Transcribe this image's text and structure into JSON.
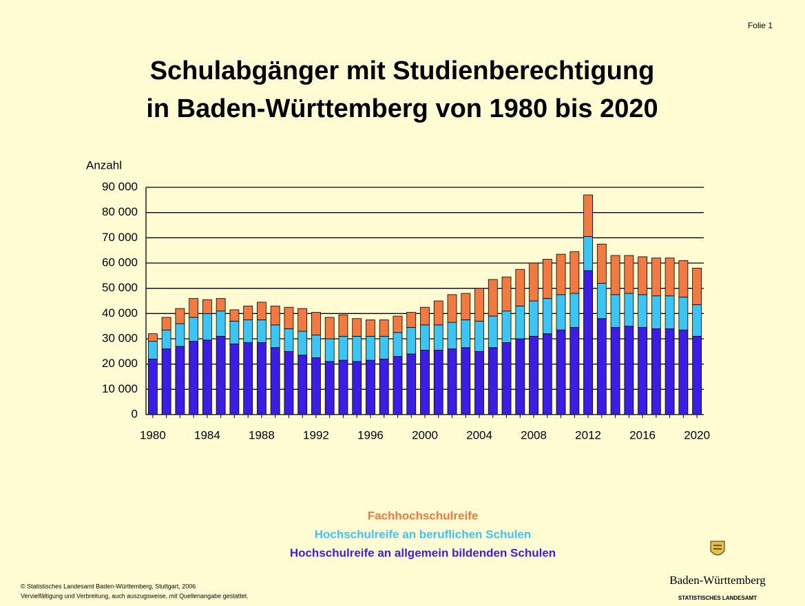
{
  "page": {
    "slide_label": "Folie 1",
    "footer": [
      "© Statistisches Landesamt Baden-Württemberg, Stuttgart, 2006",
      "Vervielfältigung und Verbreitung, auch auszugsweise, mit Quellenangabe gestattet."
    ],
    "logo": {
      "name": "Baden-Württemberg",
      "subtitle": "STATISTISCHES LANDESAMT"
    }
  },
  "chart_data": {
    "type": "stacked_bar",
    "title": [
      "Schulabgänger mit Studienberechtigung",
      "in Baden-Württemberg von 1980 bis 2020"
    ],
    "y_label": "Anzahl",
    "categories": [
      "1980",
      null,
      null,
      null,
      "1984",
      null,
      null,
      null,
      "1988",
      null,
      null,
      null,
      "1992",
      null,
      null,
      null,
      "1996",
      null,
      null,
      null,
      "2000",
      null,
      null,
      null,
      "2004",
      null,
      null,
      null,
      "2008",
      null,
      null,
      null,
      "2012",
      null,
      null,
      null,
      "2016",
      null,
      null,
      null,
      "2020"
    ],
    "series": [
      {
        "name": "Hochschulreife an allgemein bildenden Schulen",
        "color": "#3a1ee6",
        "values": [
          22000,
          26000,
          27000,
          29000,
          29500,
          31000,
          28000,
          28500,
          28500,
          26500,
          25000,
          23500,
          22500,
          21000,
          21500,
          21000,
          21500,
          22000,
          23000,
          24000,
          25500,
          25500,
          26000,
          26500,
          25000,
          26500,
          28500,
          30000,
          31000,
          32000,
          33500,
          34500,
          57000,
          38000,
          34500,
          35000,
          34500,
          34000,
          34000,
          33500,
          31000
        ]
      },
      {
        "name": "Hochschulreife an beruflichen Schulen",
        "color": "#3cc4f4",
        "values": [
          7000,
          7500,
          9000,
          9500,
          10500,
          10000,
          9000,
          9000,
          9000,
          9000,
          9000,
          9500,
          9000,
          9000,
          9500,
          10000,
          9500,
          9000,
          9500,
          10500,
          10000,
          10000,
          10500,
          11000,
          12000,
          12500,
          12500,
          13000,
          14000,
          14000,
          14000,
          13500,
          13500,
          14000,
          13000,
          13000,
          13000,
          13000,
          13000,
          13000,
          12500
        ]
      },
      {
        "name": "Fachhochschulreife",
        "color": "#f07a42",
        "values": [
          3000,
          5000,
          6000,
          7500,
          5500,
          5000,
          4500,
          5500,
          7000,
          7500,
          8500,
          9000,
          9000,
          8500,
          8500,
          7000,
          6500,
          6500,
          6500,
          6000,
          7000,
          9500,
          11000,
          10500,
          13000,
          14500,
          13500,
          14500,
          15000,
          15500,
          16000,
          16500,
          16500,
          15500,
          15500,
          15000,
          15000,
          15000,
          15000,
          14500,
          14500
        ]
      }
    ],
    "ylim": [
      0,
      90000
    ],
    "yticks": [
      0,
      {
        "value": 10000,
        "label": "10 000"
      },
      {
        "value": 20000,
        "label": "20 000"
      },
      {
        "value": 30000,
        "label": "30 000"
      },
      {
        "value": 40000,
        "label": "40 000"
      },
      {
        "value": 50000,
        "label": "50 000"
      },
      {
        "value": 60000,
        "label": "60 000"
      },
      {
        "value": 70000,
        "label": "70 000"
      },
      {
        "value": 80000,
        "label": "80 000"
      },
      {
        "value": 90000,
        "label": "90 000"
      }
    ],
    "grid": true
  }
}
